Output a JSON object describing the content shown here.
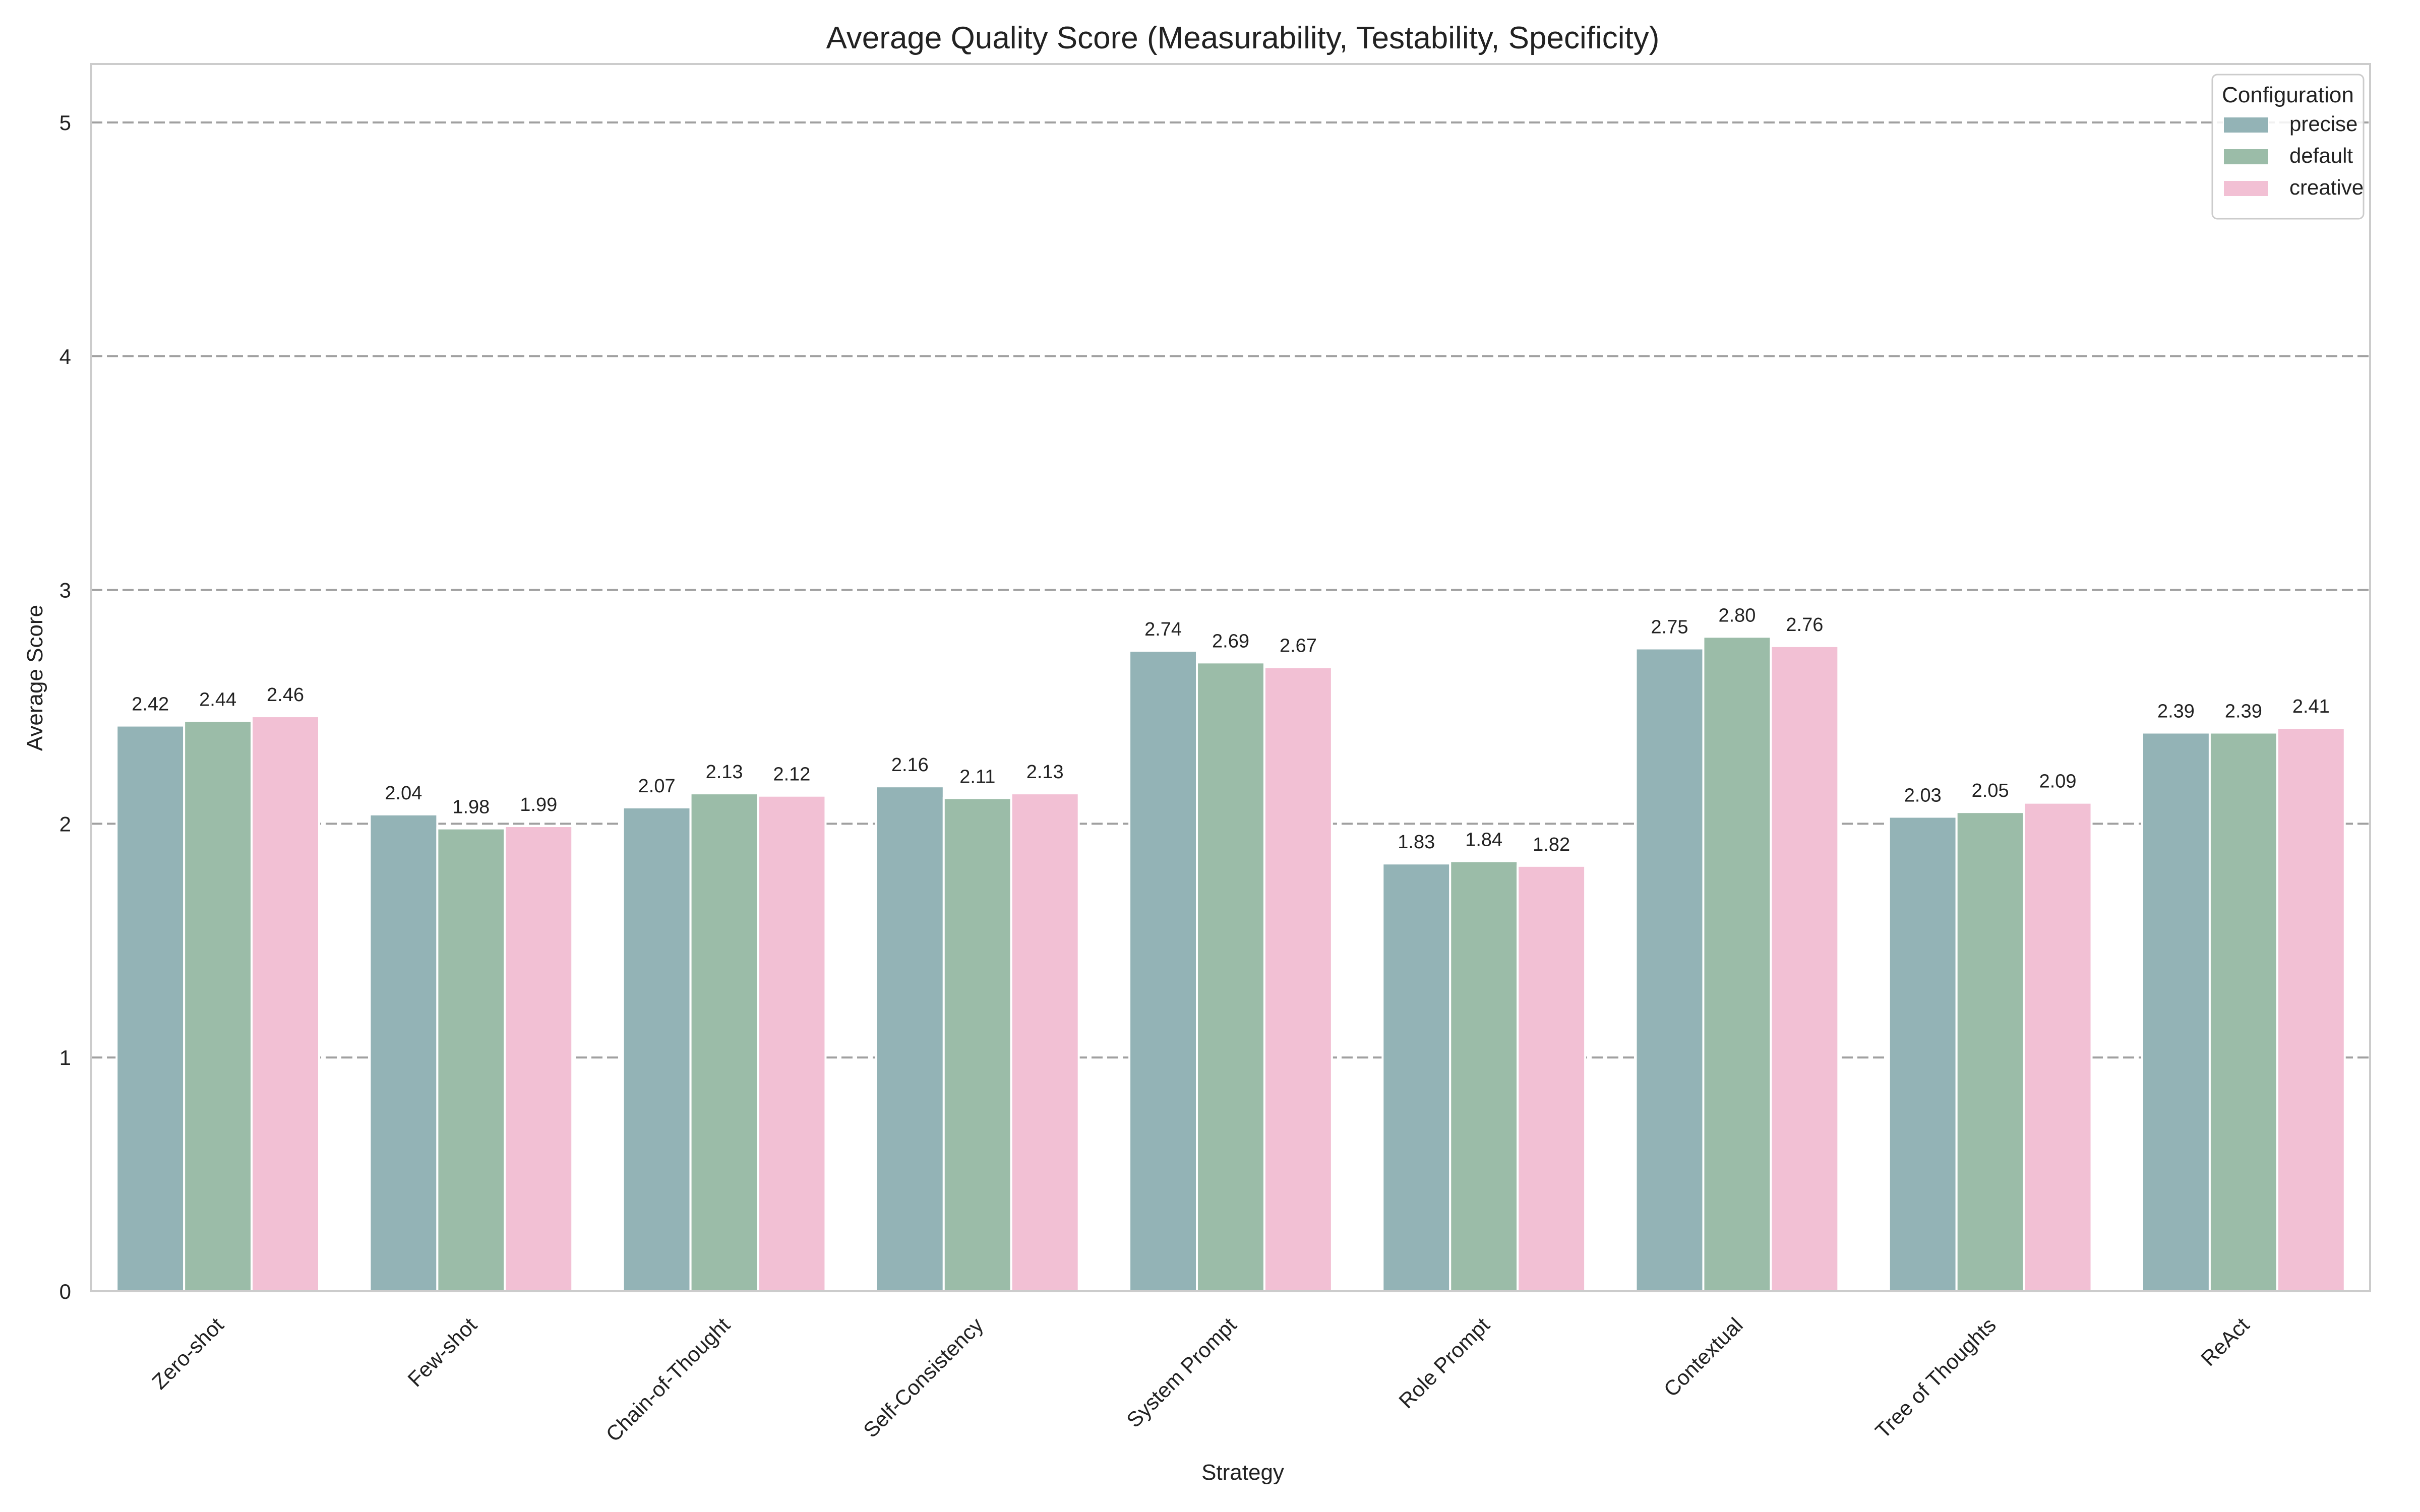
{
  "chart_data": {
    "type": "bar",
    "title": "Average Quality Score (Measurability, Testability, Specificity)",
    "xlabel": "Strategy",
    "ylabel": "Average Score",
    "ylim": [
      0,
      5.25
    ],
    "yticks": [
      0,
      1,
      2,
      3,
      4,
      5
    ],
    "grid": "horizontal-dashed",
    "legend_title": "Configuration",
    "legend_position": "top-right",
    "categories": [
      "Zero-shot",
      "Few-shot",
      "Chain-of-Thought",
      "Self-Consistency",
      "System Prompt",
      "Role Prompt",
      "Contextual",
      "Tree of Thoughts",
      "ReAct"
    ],
    "series": [
      {
        "name": "precise",
        "color": "#93b3b6",
        "values": [
          2.42,
          2.04,
          2.07,
          2.16,
          2.74,
          1.83,
          2.75,
          2.03,
          2.39
        ],
        "labels": [
          "2.42",
          "2.04",
          "2.07",
          "2.16",
          "2.74",
          "1.83",
          "2.75",
          "2.03",
          "2.39"
        ]
      },
      {
        "name": "default",
        "color": "#9bbca8",
        "values": [
          2.44,
          1.98,
          2.13,
          2.11,
          2.69,
          1.84,
          2.8,
          2.05,
          2.39
        ],
        "labels": [
          "2.44",
          "1.98",
          "2.13",
          "2.11",
          "2.69",
          "1.84",
          "2.80",
          "2.05",
          "2.39"
        ]
      },
      {
        "name": "creative",
        "color": "#f2c0d4",
        "values": [
          2.46,
          1.99,
          2.12,
          2.13,
          2.67,
          1.82,
          2.76,
          2.09,
          2.41
        ],
        "labels": [
          "2.46",
          "1.99",
          "2.12",
          "2.13",
          "2.67",
          "1.82",
          "2.76",
          "2.09",
          "2.41"
        ]
      }
    ]
  }
}
